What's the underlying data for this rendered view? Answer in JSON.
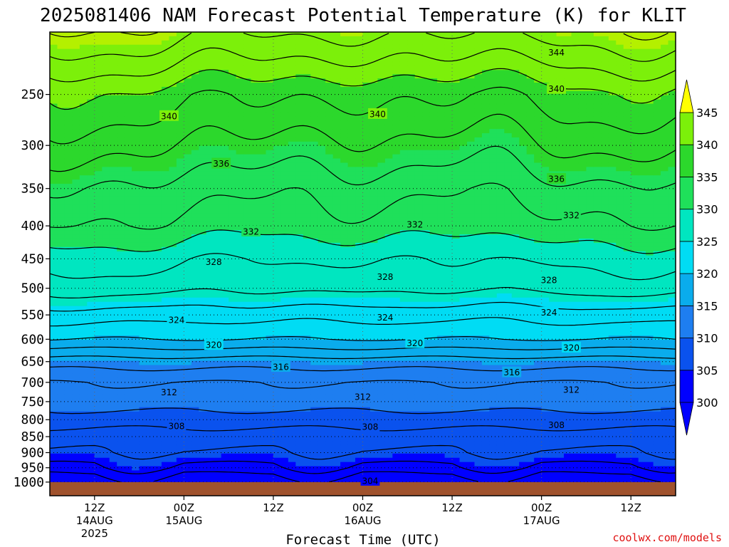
{
  "chart_data": {
    "type": "heatmap",
    "title": "2025081406 NAM Forecast Potential Temperature (K) for KLIT",
    "xlabel": "Forecast Time (UTC)",
    "ylabel": "",
    "credit": "coolwx.com/models",
    "y_scale": "log-pressure",
    "y_range_hPa": [
      1050,
      200
    ],
    "pressure_ticks": [
      250,
      300,
      350,
      400,
      450,
      500,
      550,
      600,
      650,
      700,
      750,
      800,
      850,
      900,
      950,
      1000
    ],
    "x_range": [
      "2025-08-14 06Z",
      "2025-08-17 18Z"
    ],
    "x_ticks": [
      {
        "time": "2025-08-14 12Z",
        "hour": "12Z",
        "date": "14AUG",
        "year": "2025"
      },
      {
        "time": "2025-08-15 00Z",
        "hour": "00Z",
        "date": "15AUG",
        "year": ""
      },
      {
        "time": "2025-08-15 12Z",
        "hour": "12Z",
        "date": "",
        "year": ""
      },
      {
        "time": "2025-08-16 00Z",
        "hour": "00Z",
        "date": "16AUG",
        "year": ""
      },
      {
        "time": "2025-08-16 12Z",
        "hour": "12Z",
        "date": "",
        "year": ""
      },
      {
        "time": "2025-08-17 00Z",
        "hour": "00Z",
        "date": "17AUG",
        "year": ""
      },
      {
        "time": "2025-08-17 12Z",
        "hour": "12Z",
        "date": "",
        "year": ""
      }
    ],
    "grid": "dotted",
    "colorbar": {
      "labels": [
        300,
        305,
        310,
        315,
        320,
        325,
        330,
        335,
        340,
        345
      ],
      "bands": [
        {
          "value": 300,
          "color": "#0000ff"
        },
        {
          "value": 305,
          "color": "#0a52ee"
        },
        {
          "value": 310,
          "color": "#1e7ef0"
        },
        {
          "value": 315,
          "color": "#0aacec"
        },
        {
          "value": 320,
          "color": "#00dcf4"
        },
        {
          "value": 325,
          "color": "#00e6c0"
        },
        {
          "value": 330,
          "color": "#1fe05a"
        },
        {
          "value": 335,
          "color": "#2cd82c"
        },
        {
          "value": 340,
          "color": "#7cf00a"
        },
        {
          "value": 345,
          "color": "#b4f000"
        },
        {
          "value": 350,
          "color": "#ffff00"
        }
      ],
      "under_color": "#0000ff",
      "over_color": "#ffff00"
    },
    "ground_color": "#a0522d",
    "contour_interval_K": 2,
    "theta_profile_K": [
      {
        "p": 1000,
        "theta": 301
      },
      {
        "p": 950,
        "theta": 304
      },
      {
        "p": 900,
        "theta": 306
      },
      {
        "p": 850,
        "theta": 307
      },
      {
        "p": 800,
        "theta": 309
      },
      {
        "p": 750,
        "theta": 311
      },
      {
        "p": 700,
        "theta": 312
      },
      {
        "p": 650,
        "theta": 315
      },
      {
        "p": 600,
        "theta": 320
      },
      {
        "p": 550,
        "theta": 323
      },
      {
        "p": 500,
        "theta": 327
      },
      {
        "p": 450,
        "theta": 329
      },
      {
        "p": 400,
        "theta": 332
      },
      {
        "p": 350,
        "theta": 334
      },
      {
        "p": 300,
        "theta": 337
      },
      {
        "p": 250,
        "theta": 340
      },
      {
        "p": 200,
        "theta": 346
      }
    ],
    "contour_labels": [
      {
        "theta": 344,
        "time": "2025-08-17 02Z",
        "p": 215
      },
      {
        "theta": 340,
        "time": "2025-08-14 22Z",
        "p": 270
      },
      {
        "theta": 340,
        "time": "2025-08-16 02Z",
        "p": 268
      },
      {
        "theta": 340,
        "time": "2025-08-17 02Z",
        "p": 245
      },
      {
        "theta": 336,
        "time": "2025-08-15 05Z",
        "p": 320
      },
      {
        "theta": 336,
        "time": "2025-08-17 02Z",
        "p": 338
      },
      {
        "theta": 332,
        "time": "2025-08-15 09Z",
        "p": 408
      },
      {
        "theta": 332,
        "time": "2025-08-16 07Z",
        "p": 398
      },
      {
        "theta": 332,
        "time": "2025-08-17 04Z",
        "p": 385
      },
      {
        "theta": 328,
        "time": "2025-08-15 04Z",
        "p": 455
      },
      {
        "theta": 328,
        "time": "2025-08-16 03Z",
        "p": 480
      },
      {
        "theta": 328,
        "time": "2025-08-17 01Z",
        "p": 485
      },
      {
        "theta": 324,
        "time": "2025-08-14 23Z",
        "p": 560
      },
      {
        "theta": 324,
        "time": "2025-08-16 03Z",
        "p": 555
      },
      {
        "theta": 324,
        "time": "2025-08-17 01Z",
        "p": 545
      },
      {
        "theta": 320,
        "time": "2025-08-15 04Z",
        "p": 612
      },
      {
        "theta": 320,
        "time": "2025-08-16 07Z",
        "p": 608
      },
      {
        "theta": 320,
        "time": "2025-08-17 04Z",
        "p": 618
      },
      {
        "theta": 316,
        "time": "2025-08-15 13Z",
        "p": 662
      },
      {
        "theta": 316,
        "time": "2025-08-16 20Z",
        "p": 675
      },
      {
        "theta": 312,
        "time": "2025-08-14 22Z",
        "p": 725
      },
      {
        "theta": 312,
        "time": "2025-08-16 00Z",
        "p": 737
      },
      {
        "theta": 312,
        "time": "2025-08-17 04Z",
        "p": 718
      },
      {
        "theta": 308,
        "time": "2025-08-14 23Z",
        "p": 818
      },
      {
        "theta": 308,
        "time": "2025-08-16 01Z",
        "p": 820
      },
      {
        "theta": 308,
        "time": "2025-08-17 02Z",
        "p": 815
      },
      {
        "theta": 304,
        "time": "2025-08-16 01Z",
        "p": 995
      }
    ]
  }
}
